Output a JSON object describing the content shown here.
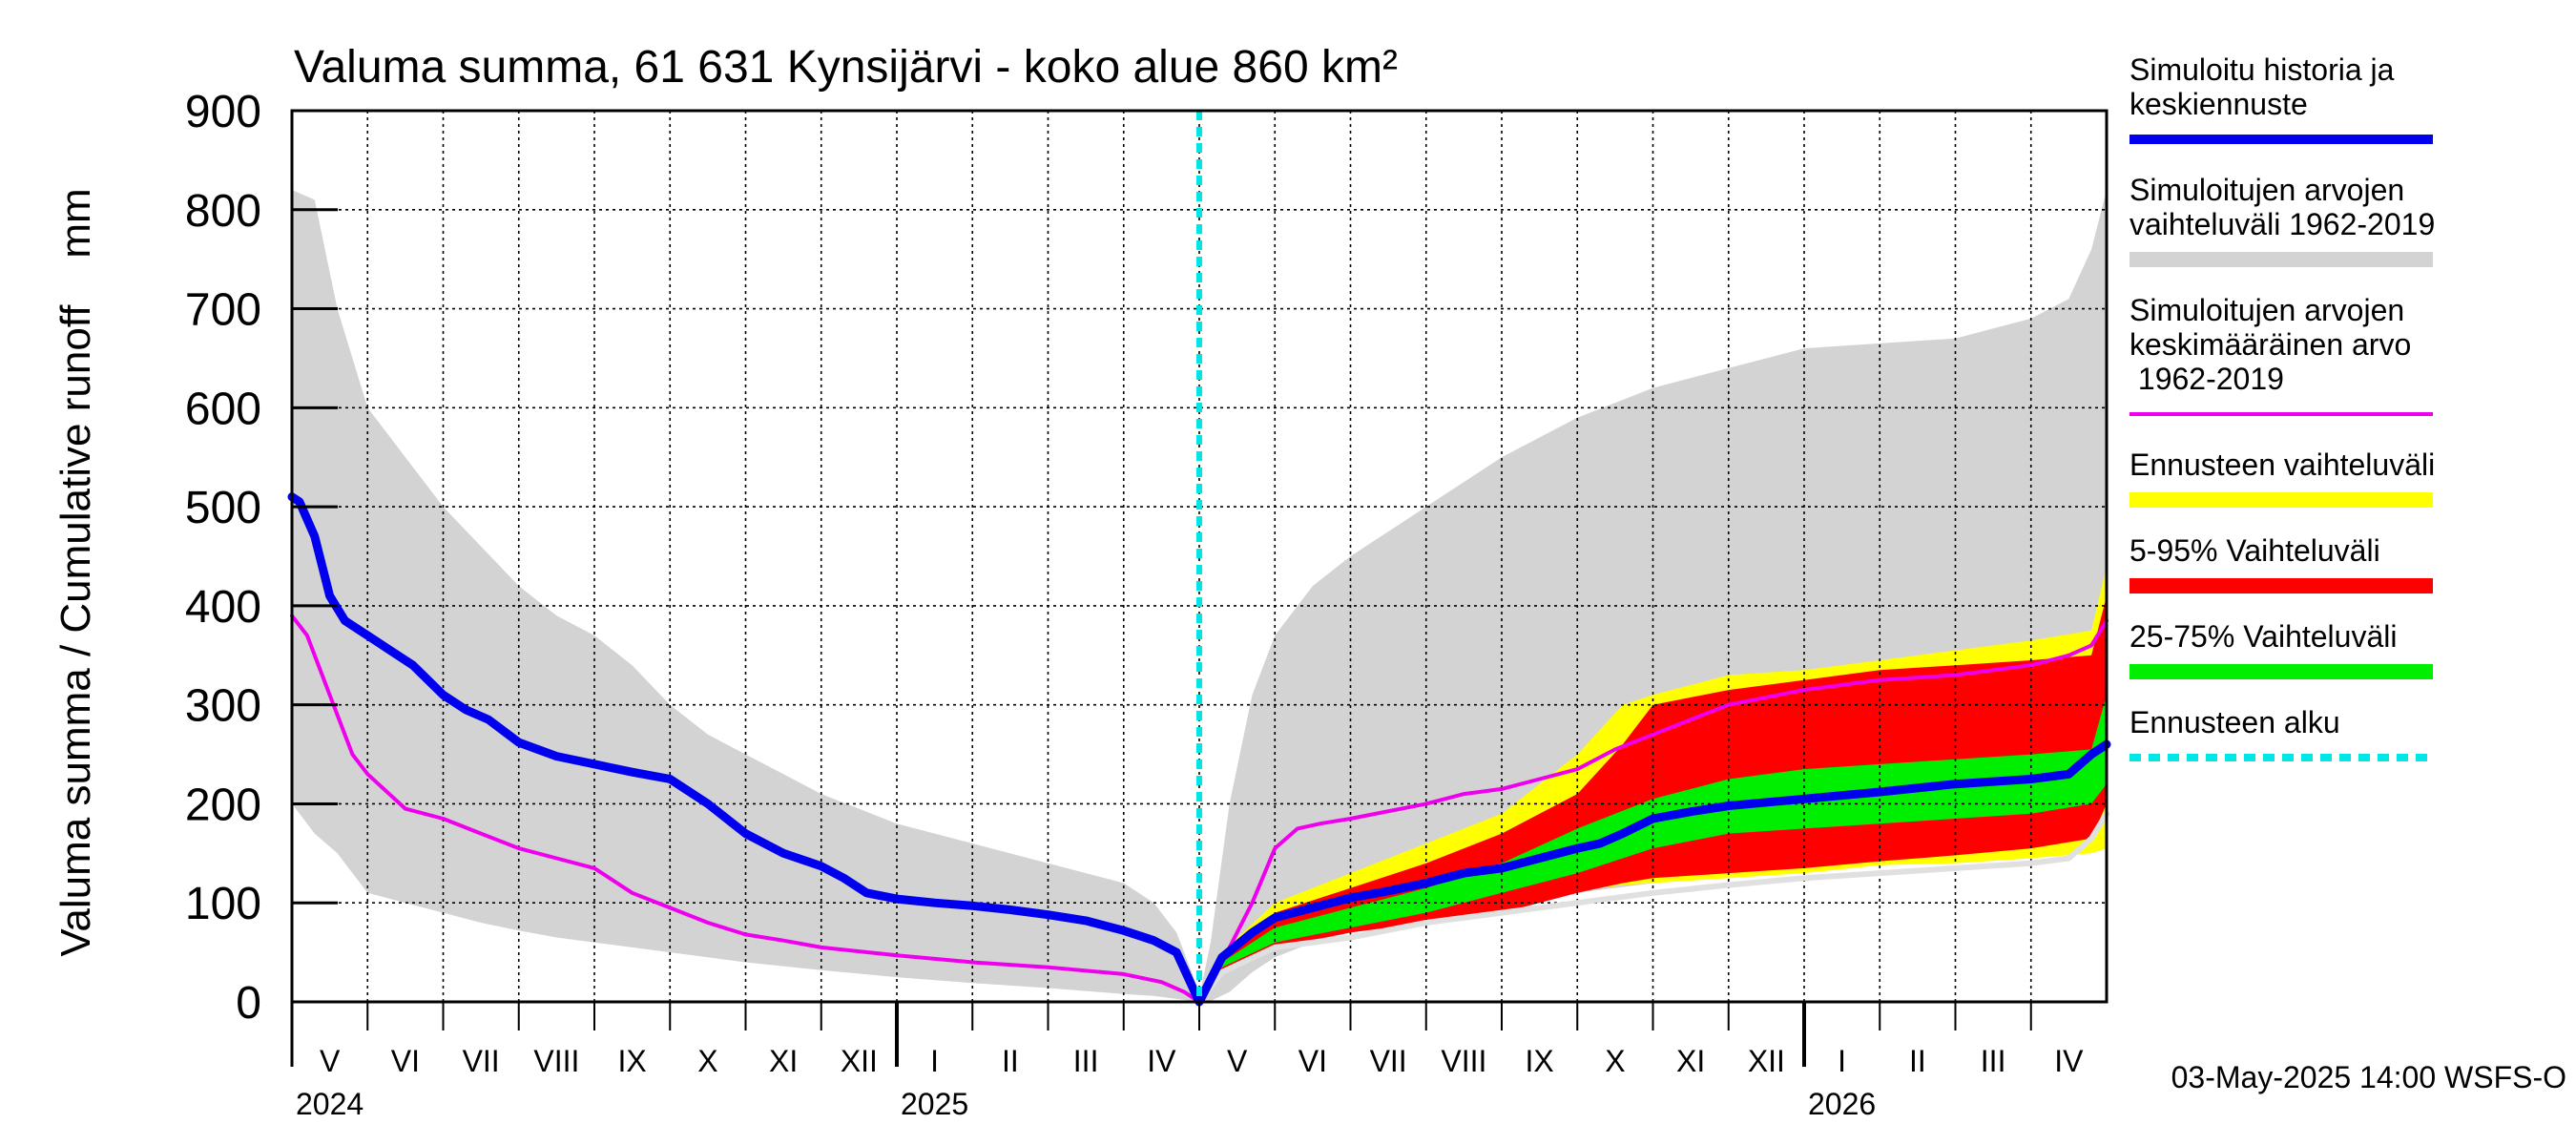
{
  "chart_data": {
    "type": "area",
    "title": "Valuma summa, 61 631 Kynsijärvi - koko alue 860 km²",
    "ylabel": "Valuma summa / Cumulative runoff    mm",
    "ylim": [
      0,
      900
    ],
    "y_ticks": [
      "0",
      "100",
      "200",
      "300",
      "400",
      "500",
      "600",
      "700",
      "800",
      "900"
    ],
    "months": [
      "V",
      "VI",
      "VII",
      "VIII",
      "IX",
      "X",
      "XI",
      "XII",
      "I",
      "II",
      "III",
      "IV",
      "V",
      "VI",
      "VII",
      "VIII",
      "IX",
      "X",
      "XI",
      "XII",
      "I",
      "II",
      "III",
      "IV"
    ],
    "years": [
      "2024",
      "2025",
      "2026"
    ],
    "forecast_start_month": 12,
    "footer": "03-May-2025 14:00 WSFS-O",
    "legend": [
      {
        "label": "Simuloitu historia ja keskiennuste",
        "lines": [
          "Simuloitu historia ja",
          "keskiennuste"
        ],
        "color": "#0000ee",
        "style": "line"
      },
      {
        "label": "Simuloitujen arvojen vaihteluväli 1962-2019",
        "lines": [
          "Simuloitujen arvojen",
          "vaihteluväli 1962-2019"
        ],
        "color": "#d3d3d3",
        "style": "band"
      },
      {
        "label": "Simuloitujen arvojen keskimääräinen arvo 1962-2019",
        "lines": [
          "Simuloitujen arvojen",
          "keskimääräinen arvo",
          "   1962-2019"
        ],
        "color": "#ee00ee",
        "style": "line"
      },
      {
        "label": "Ennusteen vaihteluväli",
        "lines": [
          "Ennusteen vaihteluväli"
        ],
        "color": "#ffff00",
        "style": "band"
      },
      {
        "label": "5-95% Vaihteluväli",
        "lines": [
          "5-95% Vaihteluväli"
        ],
        "color": "#ff0000",
        "style": "band"
      },
      {
        "label": "25-75% Vaihteluväli",
        "lines": [
          "25-75% Vaihteluväli"
        ],
        "color": "#00ee00",
        "style": "band"
      },
      {
        "label": "Ennusteen alku",
        "lines": [
          "Ennusteen alku"
        ],
        "color": "#00e5e5",
        "style": "dashed"
      }
    ],
    "series": [
      {
        "name": "hist_range",
        "color": "#d3d3d3",
        "x": [
          0,
          0.3,
          0.6,
          1,
          1.5,
          2,
          2.5,
          3,
          3.5,
          4,
          4.5,
          5,
          5.5,
          6,
          6.5,
          7,
          8,
          9,
          10,
          10.5,
          11,
          11.4,
          11.7,
          11.9,
          12,
          12.15,
          12.4,
          12.7,
          13,
          13.5,
          14,
          15,
          16,
          17,
          18,
          19,
          20,
          21,
          22,
          22.5,
          23,
          23.5,
          23.8,
          24
        ],
        "upper": [
          820,
          810,
          700,
          600,
          550,
          500,
          460,
          420,
          390,
          370,
          340,
          300,
          270,
          250,
          230,
          210,
          180,
          160,
          140,
          130,
          120,
          100,
          70,
          30,
          5,
          60,
          200,
          310,
          370,
          420,
          450,
          500,
          550,
          590,
          620,
          640,
          660,
          665,
          670,
          680,
          690,
          710,
          760,
          820
        ],
        "lower": [
          200,
          170,
          150,
          110,
          100,
          90,
          80,
          72,
          65,
          60,
          55,
          50,
          45,
          40,
          36,
          32,
          25,
          19,
          14,
          11,
          8,
          6,
          3,
          1,
          0,
          1,
          10,
          30,
          45,
          60,
          70,
          85,
          100,
          110,
          120,
          130,
          135,
          140,
          145,
          148,
          150,
          155,
          160,
          165
        ]
      },
      {
        "name": "forecast_range",
        "color": "#ffff00",
        "x": [
          12,
          12.3,
          13,
          14,
          15,
          16,
          17,
          17.6,
          18,
          19,
          20,
          21,
          22,
          23,
          23.8,
          24
        ],
        "upper": [
          0,
          50,
          100,
          130,
          160,
          190,
          250,
          300,
          310,
          330,
          335,
          345,
          355,
          365,
          375,
          440
        ],
        "lower": [
          0,
          35,
          60,
          75,
          90,
          100,
          112,
          118,
          120,
          125,
          130,
          138,
          140,
          145,
          150,
          155
        ]
      },
      {
        "name": "p5_95",
        "color": "#ff0000",
        "x": [
          12,
          12.3,
          13,
          14,
          15,
          16,
          17,
          17.6,
          18,
          19,
          20,
          21,
          22,
          23,
          23.8,
          24
        ],
        "upper": [
          0,
          45,
          90,
          115,
          140,
          170,
          210,
          260,
          300,
          315,
          325,
          335,
          340,
          345,
          350,
          410
        ],
        "lower": [
          0,
          30,
          55,
          70,
          80,
          90,
          110,
          120,
          125,
          130,
          135,
          142,
          148,
          155,
          165,
          200
        ]
      },
      {
        "name": "p25_75",
        "color": "#00ee00",
        "x": [
          12,
          12.3,
          13,
          14,
          15,
          16,
          17,
          18,
          19,
          20,
          21,
          22,
          23,
          23.8,
          24
        ],
        "upper": [
          0,
          40,
          75,
          95,
          115,
          140,
          175,
          205,
          225,
          235,
          240,
          245,
          250,
          255,
          310
        ],
        "lower": [
          0,
          35,
          60,
          75,
          90,
          110,
          130,
          155,
          170,
          175,
          180,
          185,
          190,
          200,
          220
        ]
      },
      {
        "name": "hist_mean",
        "color": "#ee00ee",
        "x": [
          0,
          0.2,
          0.5,
          0.8,
          1,
          1.5,
          2,
          2.5,
          3,
          3.5,
          4,
          4.5,
          5,
          5.5,
          6,
          6.5,
          7,
          8,
          9,
          10,
          11,
          11.5,
          11.8,
          12,
          12.3,
          12.7,
          13,
          13.3,
          13.6,
          14,
          15,
          15.5,
          16,
          16.5,
          17,
          17.5,
          18,
          19,
          20,
          21,
          22,
          23,
          23.5,
          23.8,
          24
        ],
        "values": [
          390,
          370,
          310,
          250,
          230,
          195,
          185,
          170,
          155,
          145,
          135,
          110,
          95,
          80,
          68,
          62,
          55,
          47,
          40,
          35,
          28,
          20,
          10,
          0,
          40,
          100,
          155,
          175,
          180,
          185,
          200,
          210,
          215,
          225,
          235,
          255,
          270,
          300,
          315,
          325,
          330,
          340,
          350,
          360,
          385
        ]
      },
      {
        "name": "hist_ext",
        "color": "#e0e0e0",
        "x": [
          12,
          12.3,
          13,
          14,
          15,
          16,
          17,
          18,
          19,
          20,
          21,
          22,
          23,
          23.5,
          23.8,
          24
        ],
        "values": [
          0,
          30,
          55,
          65,
          80,
          90,
          100,
          110,
          118,
          125,
          130,
          135,
          140,
          145,
          165,
          190
        ]
      },
      {
        "name": "sim_history",
        "color": "#0000ee",
        "x": [
          0,
          0.1,
          0.3,
          0.5,
          0.7,
          1,
          1.3,
          1.6,
          2,
          2.3,
          2.6,
          3,
          3.5,
          4,
          4.5,
          5,
          5.5,
          6,
          6.5,
          7,
          7.3,
          7.6,
          8,
          8.5,
          9,
          9.5,
          10,
          10.5,
          11,
          11.4,
          11.7,
          12,
          12.3,
          12.7,
          13,
          13.5,
          14,
          14.5,
          15,
          15.5,
          16,
          16.5,
          17,
          17.3,
          17.6,
          18,
          18.5,
          19,
          20,
          21,
          22,
          23,
          23.5,
          23.8,
          24
        ],
        "values": [
          510,
          505,
          470,
          410,
          385,
          370,
          355,
          340,
          310,
          295,
          285,
          262,
          248,
          240,
          232,
          225,
          200,
          170,
          150,
          137,
          125,
          110,
          104,
          100,
          97,
          93,
          88,
          82,
          72,
          62,
          50,
          0,
          45,
          70,
          85,
          95,
          105,
          112,
          120,
          130,
          135,
          145,
          155,
          160,
          170,
          185,
          192,
          198,
          205,
          212,
          220,
          225,
          230,
          250,
          260
        ]
      }
    ]
  }
}
